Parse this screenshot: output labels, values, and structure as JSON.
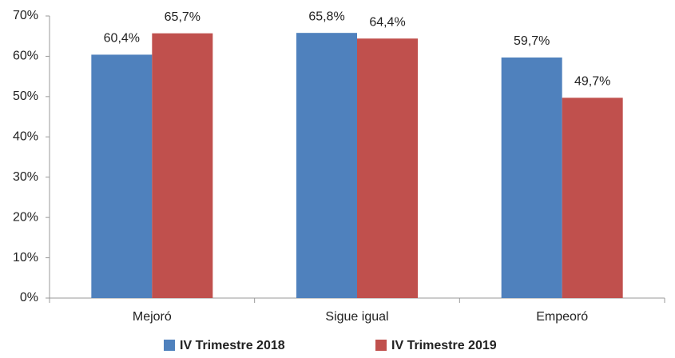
{
  "chart_data": {
    "type": "bar",
    "categories": [
      "Mejoró",
      "Sigue igual",
      "Empeoró"
    ],
    "series": [
      {
        "name": "IV Trimestre 2018",
        "color": "#4f81bd",
        "values": [
          60.4,
          65.8,
          59.7
        ],
        "value_labels": [
          "60,4%",
          "65,8%",
          "59,7%"
        ]
      },
      {
        "name": "IV Trimestre 2019",
        "color": "#c0504d",
        "values": [
          65.7,
          64.4,
          49.7
        ],
        "value_labels": [
          "65,7%",
          "64,4%",
          "49,7%"
        ]
      }
    ],
    "ylim": [
      0,
      70
    ],
    "yticks": [
      {
        "value": 0,
        "label": "0%"
      },
      {
        "value": 10,
        "label": "10%"
      },
      {
        "value": 20,
        "label": "20%"
      },
      {
        "value": 30,
        "label": "30%"
      },
      {
        "value": 40,
        "label": "40%"
      },
      {
        "value": 50,
        "label": "50%"
      },
      {
        "value": 60,
        "label": "60%"
      },
      {
        "value": 70,
        "label": "70%"
      }
    ],
    "grid": false,
    "legend": "bottom"
  }
}
